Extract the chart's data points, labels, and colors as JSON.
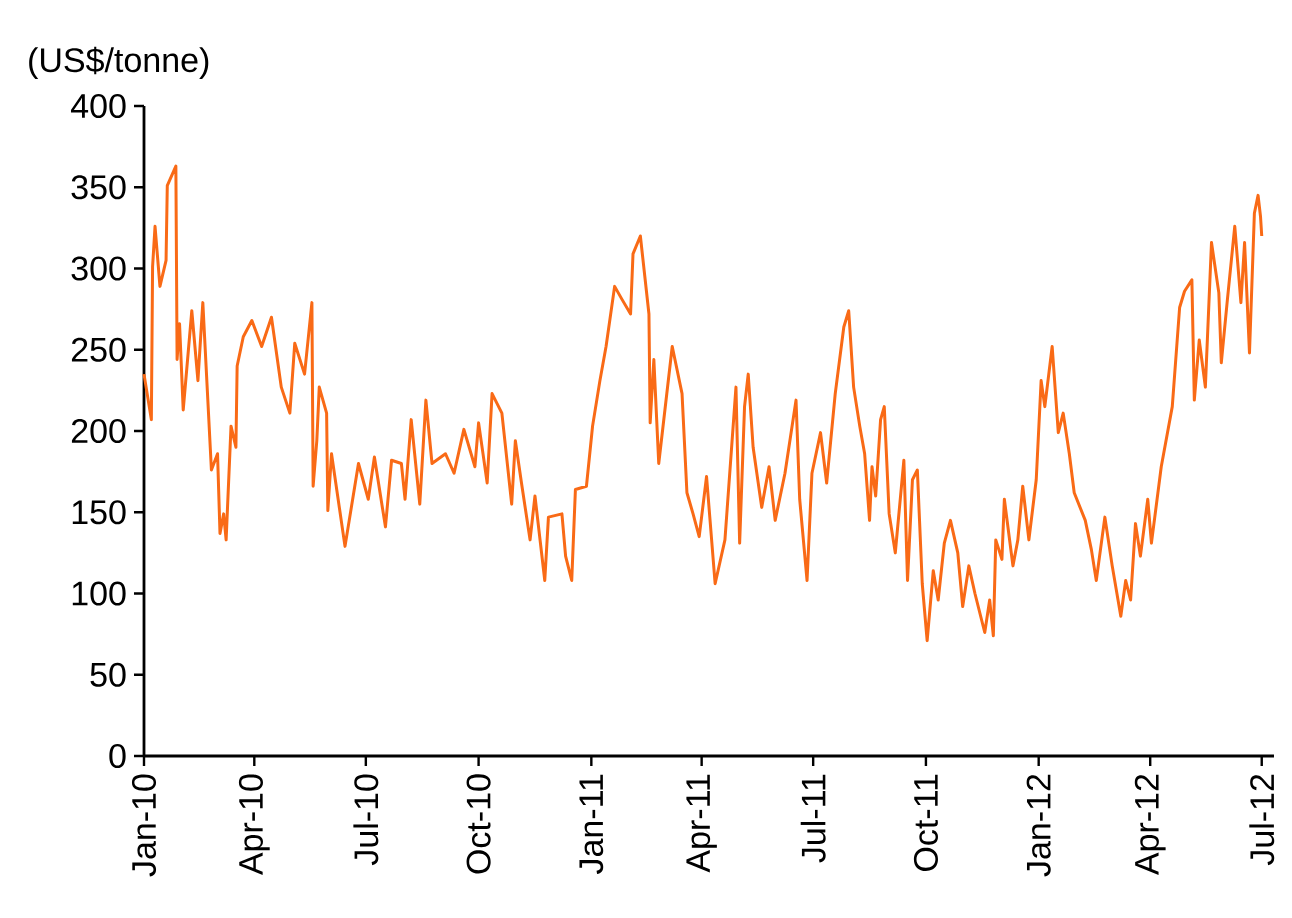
{
  "chart_data": {
    "type": "line",
    "ylabel": "(US$/tonne)",
    "color": "#f96a16",
    "line_style": "solid",
    "x": [
      "2010-01-01",
      "2010-01-07",
      "2010-01-08",
      "2010-01-10",
      "2010-01-14",
      "2010-01-19",
      "2010-01-20",
      "2010-01-27",
      "2010-01-28",
      "2010-01-30",
      "2010-02-02",
      "2010-02-09",
      "2010-02-14",
      "2010-02-18",
      "2010-02-25",
      "2010-03-02",
      "2010-03-04",
      "2010-03-07",
      "2010-03-09",
      "2010-03-13",
      "2010-03-17",
      "2010-03-18",
      "2010-03-23",
      "2010-03-30",
      "2010-04-07",
      "2010-04-15",
      "2010-04-23",
      "2010-04-30",
      "2010-05-04",
      "2010-05-12",
      "2010-05-18",
      "2010-05-19",
      "2010-05-22",
      "2010-05-24",
      "2010-05-30",
      "2010-05-31",
      "2010-06-03",
      "2010-06-14",
      "2010-06-25",
      "2010-07-03",
      "2010-07-08",
      "2010-07-17",
      "2010-07-22",
      "2010-07-30",
      "2010-08-02",
      "2010-08-07",
      "2010-08-14",
      "2010-08-19",
      "2010-08-24",
      "2010-09-04",
      "2010-09-11",
      "2010-09-19",
      "2010-09-28",
      "2010-10-01",
      "2010-10-08",
      "2010-10-12",
      "2010-10-20",
      "2010-10-28",
      "2010-10-31",
      "2010-11-05",
      "2010-11-12",
      "2010-11-16",
      "2010-11-24",
      "2010-11-27",
      "2010-12-08",
      "2010-12-11",
      "2010-12-16",
      "2010-12-19",
      "2010-12-28",
      "2011-01-02",
      "2011-01-08",
      "2011-01-13",
      "2011-01-20",
      "2011-01-26",
      "2011-02-02",
      "2011-02-04",
      "2011-02-10",
      "2011-02-17",
      "2011-02-18",
      "2011-02-21",
      "2011-02-25",
      "2011-03-08",
      "2011-03-16",
      "2011-03-20",
      "2011-03-25",
      "2011-03-30",
      "2011-04-05",
      "2011-04-12",
      "2011-04-20",
      "2011-04-29",
      "2011-05-02",
      "2011-05-06",
      "2011-05-09",
      "2011-05-13",
      "2011-05-20",
      "2011-05-26",
      "2011-05-31",
      "2011-06-08",
      "2011-06-17",
      "2011-06-20",
      "2011-06-26",
      "2011-06-30",
      "2011-07-07",
      "2011-07-12",
      "2011-07-19",
      "2011-07-26",
      "2011-07-30",
      "2011-08-03",
      "2011-08-08",
      "2011-08-12",
      "2011-08-16",
      "2011-08-18",
      "2011-08-21",
      "2011-08-25",
      "2011-08-28",
      "2011-09-01",
      "2011-09-06",
      "2011-09-13",
      "2011-09-16",
      "2011-09-20",
      "2011-09-24",
      "2011-09-28",
      "2011-10-02",
      "2011-10-07",
      "2011-10-11",
      "2011-10-16",
      "2011-10-21",
      "2011-10-27",
      "2011-10-31",
      "2011-11-05",
      "2011-11-10",
      "2011-11-18",
      "2011-11-22",
      "2011-11-25",
      "2011-11-27",
      "2011-12-02",
      "2011-12-04",
      "2011-12-11",
      "2011-12-15",
      "2011-12-19",
      "2011-12-24",
      "2011-12-30",
      "2012-01-03",
      "2012-01-06",
      "2012-01-12",
      "2012-01-17",
      "2012-01-21",
      "2012-01-26",
      "2012-01-30",
      "2012-02-08",
      "2012-02-13",
      "2012-02-17",
      "2012-02-24",
      "2012-03-01",
      "2012-03-08",
      "2012-03-12",
      "2012-03-16",
      "2012-03-20",
      "2012-03-24",
      "2012-03-30",
      "2012-04-02",
      "2012-04-10",
      "2012-04-19",
      "2012-04-25",
      "2012-04-29",
      "2012-05-05",
      "2012-05-07",
      "2012-05-11",
      "2012-05-16",
      "2012-05-21",
      "2012-05-27",
      "2012-05-29",
      "2012-06-03",
      "2012-06-09",
      "2012-06-14",
      "2012-06-17",
      "2012-06-21",
      "2012-06-25",
      "2012-06-28",
      "2012-06-30",
      "2012-07-01"
    ],
    "values": [
      235,
      207,
      301,
      326,
      289,
      305,
      351,
      363,
      244,
      266,
      213,
      274,
      231,
      279,
      176,
      186,
      137,
      149,
      133,
      203,
      190,
      240,
      258,
      268,
      252,
      270,
      227,
      211,
      254,
      235,
      279,
      166,
      194,
      227,
      211,
      151,
      186,
      129,
      180,
      158,
      184,
      141,
      182,
      180,
      158,
      207,
      155,
      219,
      180,
      186,
      174,
      201,
      178,
      205,
      168,
      223,
      211,
      155,
      194,
      168,
      133,
      160,
      108,
      147,
      149,
      123,
      108,
      164,
      166,
      203,
      231,
      252,
      289,
      281,
      272,
      309,
      320,
      272,
      205,
      244,
      180,
      252,
      223,
      162,
      149,
      135,
      172,
      106,
      133,
      227,
      131,
      215,
      235,
      190,
      153,
      178,
      145,
      174,
      219,
      158,
      108,
      174,
      199,
      168,
      223,
      264,
      274,
      227,
      203,
      186,
      145,
      178,
      160,
      207,
      215,
      149,
      125,
      182,
      108,
      170,
      176,
      106,
      71,
      114,
      96,
      131,
      145,
      125,
      92,
      117,
      100,
      76,
      96,
      74,
      133,
      121,
      158,
      117,
      133,
      166,
      133,
      170,
      231,
      215,
      252,
      199,
      211,
      186,
      162,
      145,
      127,
      108,
      147,
      117,
      86,
      108,
      96,
      143,
      123,
      158,
      131,
      178,
      215,
      276,
      286,
      293,
      219,
      256,
      227,
      316,
      285,
      242,
      281,
      326,
      279,
      316,
      248,
      334,
      345,
      332,
      320
    ],
    "xlim": [
      "2010-01-01",
      "2012-07-11"
    ],
    "xticks": [
      {
        "value": "2010-01-01",
        "label": "Jan-10"
      },
      {
        "value": "2010-04-01",
        "label": "Apr-10"
      },
      {
        "value": "2010-07-01",
        "label": "Jul-10"
      },
      {
        "value": "2010-10-01",
        "label": "Oct-10"
      },
      {
        "value": "2011-01-01",
        "label": "Jan-11"
      },
      {
        "value": "2011-04-01",
        "label": "Apr-11"
      },
      {
        "value": "2011-07-01",
        "label": "Jul-11"
      },
      {
        "value": "2011-10-01",
        "label": "Oct-11"
      },
      {
        "value": "2012-01-01",
        "label": "Jan-12"
      },
      {
        "value": "2012-04-01",
        "label": "Apr-12"
      },
      {
        "value": "2012-07-01",
        "label": "Jul-12"
      }
    ],
    "ylim": [
      0,
      400
    ],
    "yticks": [
      0,
      50,
      100,
      150,
      200,
      250,
      300,
      350,
      400
    ]
  }
}
